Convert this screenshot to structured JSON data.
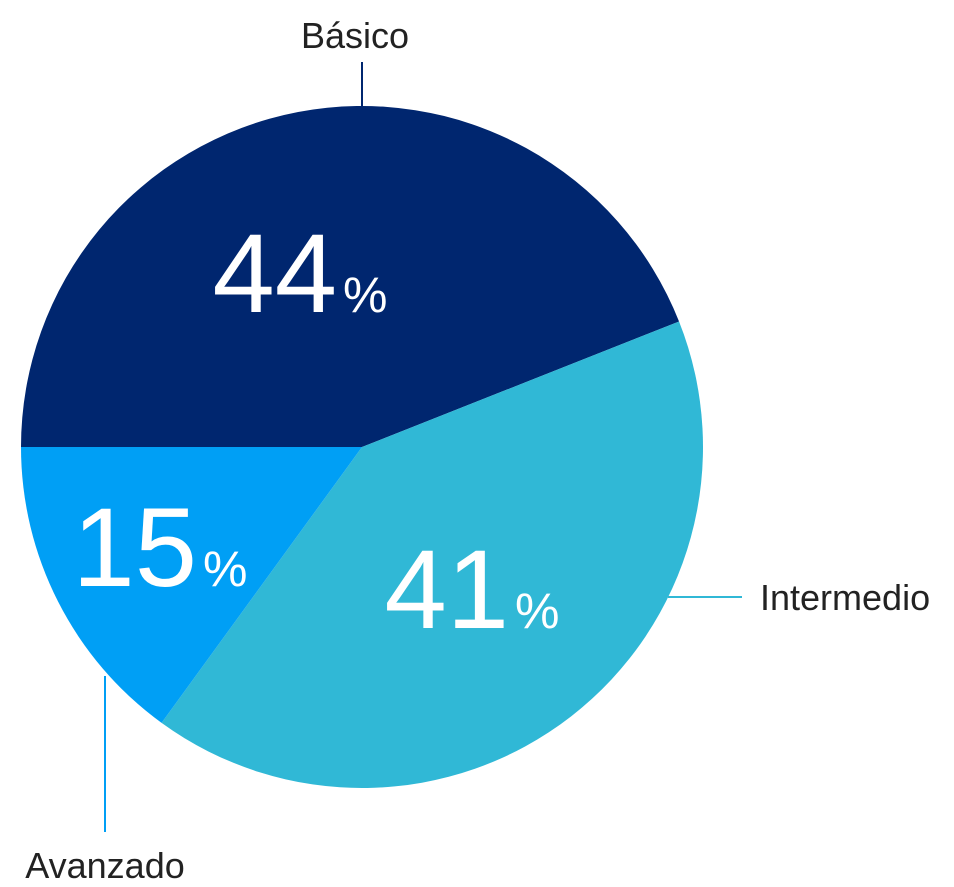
{
  "chart_data": {
    "type": "pie",
    "categories": [
      "Básico",
      "Intermedio",
      "Avanzado"
    ],
    "values": [
      44,
      41,
      15
    ],
    "value_labels": [
      "44%",
      "41%",
      "15%"
    ],
    "colors": [
      "#00266f",
      "#30b8d6",
      "#009ff5"
    ]
  }
}
